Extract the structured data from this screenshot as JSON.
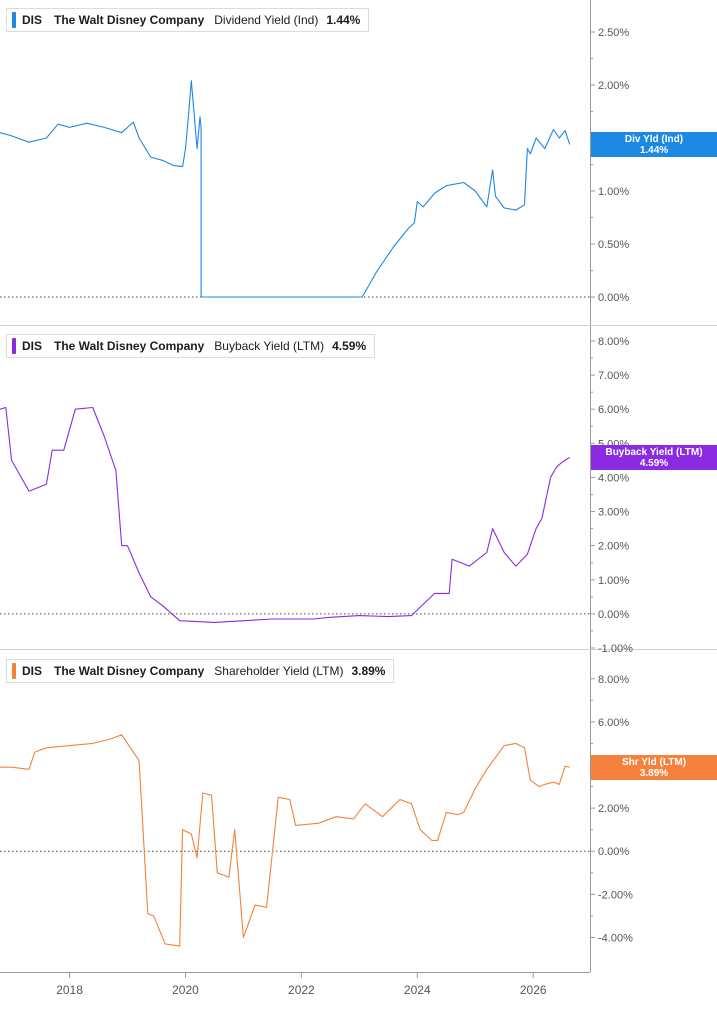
{
  "theme": {
    "bg": "#ffffff",
    "axis_color": "#9a9a9a",
    "text_color": "#555555",
    "zero_line": "#444444"
  },
  "chart_data": [
    {
      "type": "line",
      "legend": {
        "ticker": "DIS",
        "company": "The Walt Disney Company",
        "metric": "Dividend Yield (Ind)",
        "value": "1.44%"
      },
      "color": "#1e88e5",
      "tag": {
        "label": "Div Yld (Ind)",
        "value": "1.44%",
        "y": 1.44
      },
      "y_ticks": [
        "0.00%",
        "0.50%",
        "1.00%",
        "1.50%",
        "2.00%",
        "2.50%"
      ],
      "y_tick_values": [
        0,
        0.5,
        1.0,
        1.5,
        2.0,
        2.5
      ],
      "ylim": [
        0,
        2.5
      ],
      "series": [
        {
          "x": [
            2016.8,
            2017.0,
            2017.3,
            2017.6,
            2017.8,
            2018.0,
            2018.3,
            2018.6,
            2018.9,
            2019.1,
            2019.2,
            2019.4,
            2019.6,
            2019.8,
            2019.95,
            2020.0,
            2020.05,
            2020.1,
            2020.15,
            2020.2,
            2020.25,
            2020.27,
            2020.27,
            2021.0,
            2022.0,
            2023.05,
            2023.3,
            2023.6,
            2023.85,
            2023.95,
            2024.0,
            2024.1,
            2024.3,
            2024.5,
            2024.8,
            2025.0,
            2025.2,
            2025.3,
            2025.35,
            2025.5,
            2025.7,
            2025.85,
            2025.9,
            2025.95,
            2026.05,
            2026.2,
            2026.35,
            2026.45,
            2026.55,
            2026.63
          ],
          "y": [
            1.55,
            1.52,
            1.46,
            1.5,
            1.63,
            1.6,
            1.64,
            1.6,
            1.55,
            1.65,
            1.5,
            1.32,
            1.29,
            1.24,
            1.23,
            1.4,
            1.7,
            2.04,
            1.72,
            1.4,
            1.7,
            1.6,
            0.0,
            0.0,
            0.0,
            0.0,
            0.24,
            0.48,
            0.65,
            0.7,
            0.9,
            0.85,
            0.98,
            1.05,
            1.08,
            1.0,
            0.85,
            1.2,
            0.95,
            0.84,
            0.82,
            0.87,
            1.4,
            1.35,
            1.5,
            1.4,
            1.58,
            1.5,
            1.57,
            1.44
          ]
        }
      ]
    },
    {
      "type": "line",
      "legend": {
        "ticker": "DIS",
        "company": "The Walt Disney Company",
        "metric": "Buyback Yield (LTM)",
        "value": "4.59%"
      },
      "color": "#8a2be2",
      "tag": {
        "label": "Buyback Yield (LTM)",
        "value": "4.59%",
        "y": 4.59
      },
      "y_ticks": [
        "-1.00%",
        "0.00%",
        "1.00%",
        "2.00%",
        "3.00%",
        "4.00%",
        "5.00%",
        "6.00%",
        "7.00%",
        "8.00%"
      ],
      "y_tick_values": [
        -1,
        0,
        1,
        2,
        3,
        4,
        5,
        6,
        7,
        8
      ],
      "ylim": [
        -1,
        8
      ],
      "series": [
        {
          "x": [
            2016.8,
            2016.9,
            2017.0,
            2017.3,
            2017.6,
            2017.7,
            2017.9,
            2018.1,
            2018.4,
            2018.6,
            2018.8,
            2018.9,
            2019.0,
            2019.2,
            2019.4,
            2019.6,
            2019.9,
            2020.5,
            2021.5,
            2022.2,
            2022.5,
            2023.0,
            2023.5,
            2023.9,
            2024.05,
            2024.3,
            2024.55,
            2024.6,
            2024.9,
            2025.2,
            2025.3,
            2025.5,
            2025.7,
            2025.9,
            2026.05,
            2026.15,
            2026.3,
            2026.4,
            2026.5,
            2026.63
          ],
          "y": [
            6.0,
            6.05,
            4.5,
            3.6,
            3.8,
            4.8,
            4.8,
            6.0,
            6.05,
            5.2,
            4.2,
            2.0,
            2.0,
            1.2,
            0.5,
            0.25,
            -0.2,
            -0.25,
            -0.15,
            -0.15,
            -0.1,
            -0.05,
            -0.08,
            -0.05,
            0.2,
            0.6,
            0.6,
            1.6,
            1.4,
            1.8,
            2.5,
            1.8,
            1.4,
            1.75,
            2.5,
            2.8,
            4.0,
            4.3,
            4.45,
            4.59
          ]
        }
      ]
    },
    {
      "type": "line",
      "legend": {
        "ticker": "DIS",
        "company": "The Walt Disney Company",
        "metric": "Shareholder Yield (LTM)",
        "value": "3.89%"
      },
      "color": "#f4823c",
      "tag": {
        "label": "Shr Yld (LTM)",
        "value": "3.89%",
        "y": 3.89
      },
      "y_ticks": [
        "-4.00%",
        "-2.00%",
        "0.00%",
        "2.00%",
        "4.00%",
        "6.00%",
        "8.00%"
      ],
      "y_tick_values": [
        -4,
        -2,
        0,
        2,
        4,
        6,
        8
      ],
      "ylim": [
        -5,
        8.5
      ],
      "series": [
        {
          "x": [
            2016.8,
            2017.0,
            2017.3,
            2017.4,
            2017.6,
            2018.0,
            2018.4,
            2018.7,
            2018.9,
            2019.0,
            2019.2,
            2019.35,
            2019.45,
            2019.65,
            2019.9,
            2019.95,
            2020.1,
            2020.2,
            2020.3,
            2020.45,
            2020.55,
            2020.75,
            2020.85,
            2021.0,
            2021.2,
            2021.4,
            2021.6,
            2021.8,
            2021.9,
            2022.3,
            2022.6,
            2022.9,
            2023.1,
            2023.4,
            2023.7,
            2023.9,
            2024.05,
            2024.25,
            2024.35,
            2024.5,
            2024.7,
            2024.8,
            2025.0,
            2025.2,
            2025.5,
            2025.7,
            2025.85,
            2025.95,
            2026.1,
            2026.2,
            2026.35,
            2026.45,
            2026.55,
            2026.63
          ],
          "y": [
            3.9,
            3.9,
            3.8,
            4.6,
            4.8,
            4.9,
            5.0,
            5.2,
            5.4,
            5.0,
            4.2,
            -2.9,
            -3.0,
            -4.3,
            -4.4,
            1.0,
            0.8,
            -0.3,
            2.7,
            2.6,
            -1.0,
            -1.2,
            1.0,
            -4.0,
            -2.5,
            -2.6,
            2.5,
            2.4,
            1.2,
            1.3,
            1.6,
            1.5,
            2.2,
            1.6,
            2.4,
            2.2,
            1.0,
            0.5,
            0.5,
            1.8,
            1.7,
            1.8,
            2.9,
            3.8,
            4.9,
            5.0,
            4.8,
            3.3,
            3.0,
            3.1,
            3.2,
            3.1,
            3.95,
            3.89
          ]
        }
      ]
    }
  ],
  "x_axis": {
    "ticks": [
      "2018",
      "2020",
      "2022",
      "2024",
      "2026"
    ],
    "tick_values": [
      2018,
      2020,
      2022,
      2024,
      2026
    ],
    "xlim": [
      2016.8,
      2026.98
    ]
  }
}
